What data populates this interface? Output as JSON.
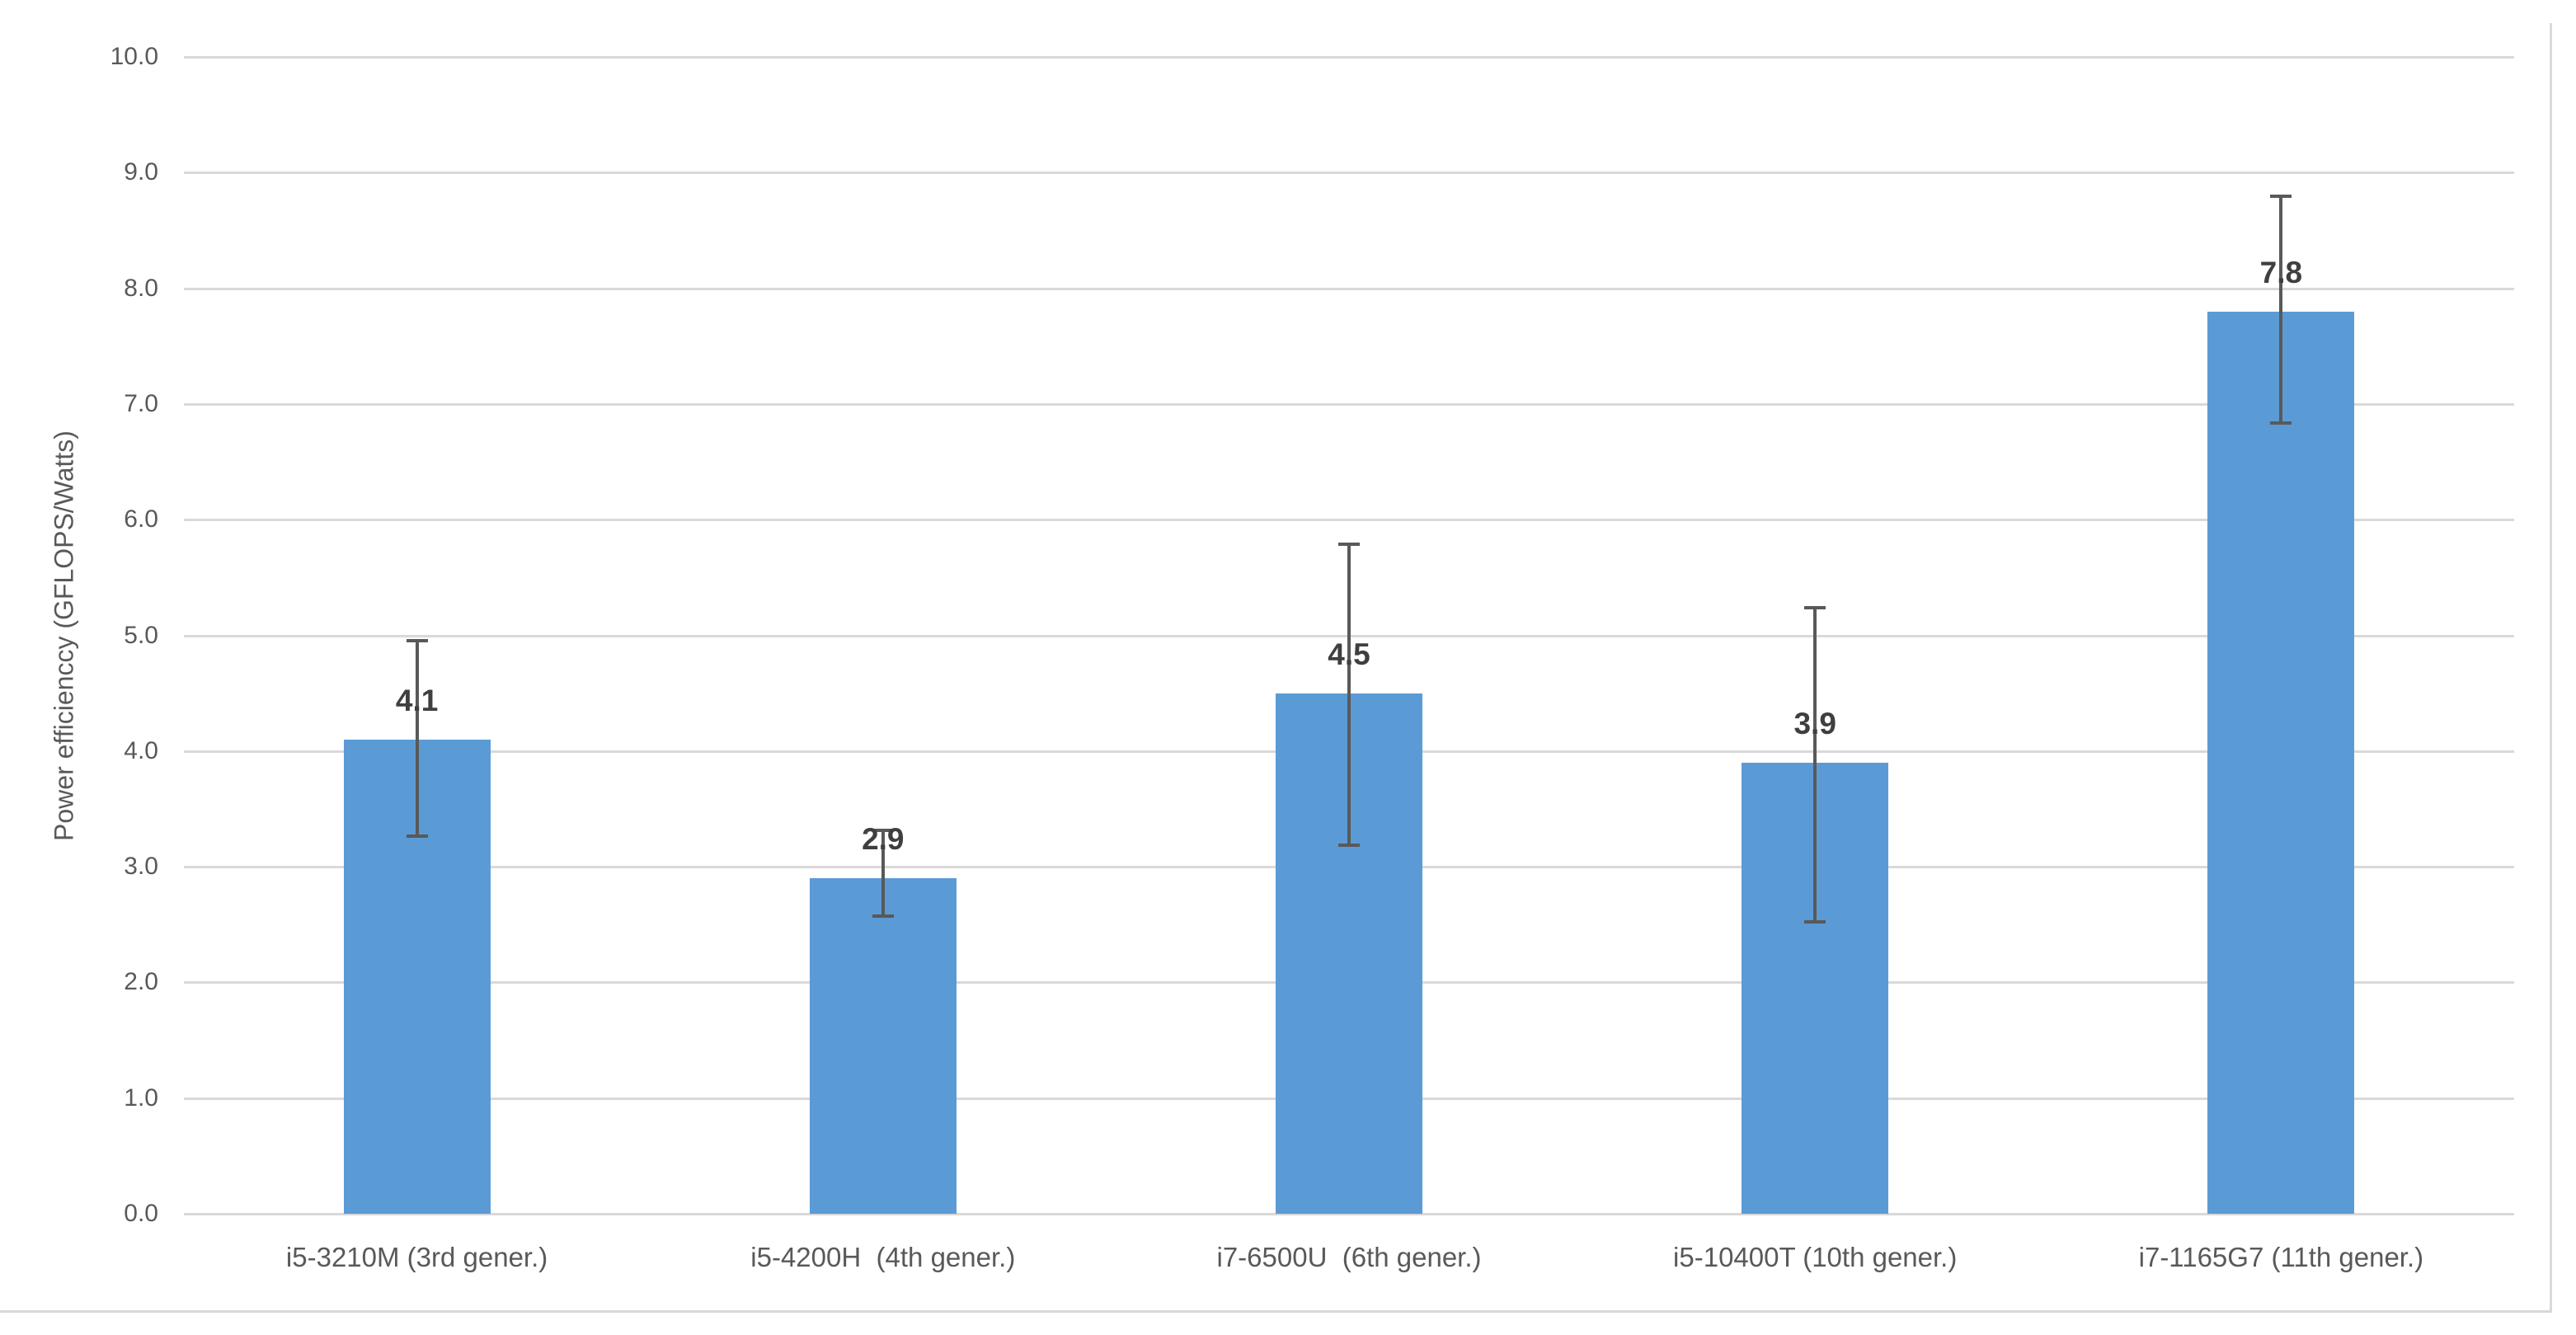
{
  "chart_data": {
    "type": "bar",
    "title": "",
    "xlabel": "",
    "ylabel": "Power efficienccy (GFLOPS/Watts)",
    "categories": [
      "i5-3210M (3rd gener.)",
      "i5-4200H  (4th gener.)",
      "i7-6500U  (6th gener.)",
      "i5-10400T (10th gener.)",
      "i7-1165G7 (11th gener.)"
    ],
    "values": [
      4.1,
      2.9,
      4.5,
      3.9,
      7.8
    ],
    "bar_labels": [
      "4.1",
      "2.9",
      "4.5",
      "3.9",
      "7.8"
    ],
    "error_bars": [
      {
        "low": 3.25,
        "high": 4.97
      },
      {
        "low": 2.56,
        "high": 3.33
      },
      {
        "low": 3.17,
        "high": 5.8
      },
      {
        "low": 2.51,
        "high": 5.25
      },
      {
        "low": 6.82,
        "high": 8.81
      }
    ],
    "ylim": [
      0,
      10
    ],
    "ytick_labels": [
      "0.0",
      "1.0",
      "2.0",
      "3.0",
      "4.0",
      "5.0",
      "6.0",
      "7.0",
      "8.0",
      "9.0",
      "10.0"
    ],
    "grid": true,
    "legend": false,
    "colors": {
      "bar_fill": "#5B9BD5",
      "gridline": "#D9D9D9",
      "error_bar": "#595959",
      "axis_text": "#595959",
      "data_label": "#3F3F3F",
      "frame_border": "#D9D9D9"
    }
  }
}
